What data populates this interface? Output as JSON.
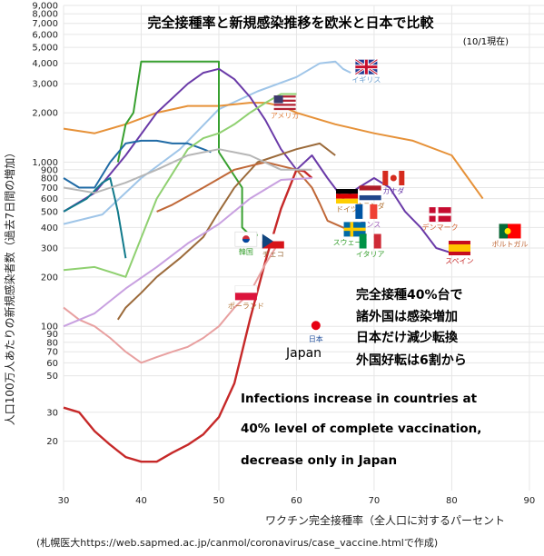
{
  "chart_data": {
    "type": "line",
    "title": "完全接種率と新規感染推移を欧米と日本で比較",
    "subtitle": "(10/1現在)",
    "xlabel": "ワクチン完全接種率（全人口に対するパーセント",
    "ylabel": "人口100万人あたりの新規感染者数（過去7日間の増加）",
    "xlim": [
      30,
      92
    ],
    "ylim": [
      10,
      9000
    ],
    "yscale": "log",
    "x_ticks": [
      "30",
      "40",
      "50",
      "60",
      "70",
      "80",
      "90"
    ],
    "y_ticks": [
      {
        "v": 20,
        "label": "20"
      },
      {
        "v": 30,
        "label": "30"
      },
      {
        "v": 50,
        "label": "50"
      },
      {
        "v": 60,
        "label": "60"
      },
      {
        "v": 70,
        "label": "70"
      },
      {
        "v": 80,
        "label": "80"
      },
      {
        "v": 90,
        "label": "90"
      },
      {
        "v": 100,
        "label": "100"
      },
      {
        "v": 200,
        "label": "200"
      },
      {
        "v": 300,
        "label": "300"
      },
      {
        "v": 400,
        "label": "400"
      },
      {
        "v": 500,
        "label": "500"
      },
      {
        "v": 600,
        "label": "600"
      },
      {
        "v": 700,
        "label": "700"
      },
      {
        "v": 800,
        "label": "800"
      },
      {
        "v": 900,
        "label": "900"
      },
      {
        "v": 1000,
        "label": "1,000"
      },
      {
        "v": 2000,
        "label": "2,000"
      },
      {
        "v": 3000,
        "label": "3,000"
      },
      {
        "v": 4000,
        "label": "4,000"
      },
      {
        "v": 5000,
        "label": "5,000"
      },
      {
        "v": 6000,
        "label": "6,000"
      },
      {
        "v": 7000,
        "label": "7,000"
      },
      {
        "v": 8000,
        "label": "8,000"
      },
      {
        "v": 9000,
        "label": "9,000"
      }
    ],
    "series": [
      {
        "name": "日本",
        "color": "#c62828",
        "x": [
          30,
          32,
          34,
          36,
          38,
          40,
          42,
          44,
          46,
          48,
          50,
          52,
          54,
          56,
          58,
          60,
          61,
          62
        ],
        "y": [
          32,
          30,
          23,
          19,
          16,
          15,
          15,
          17,
          19,
          22,
          28,
          45,
          110,
          250,
          520,
          900,
          880,
          800
        ]
      },
      {
        "name": "イギリス",
        "color": "#9fc5e8",
        "x": [
          30,
          35,
          40,
          45,
          50,
          55,
          60,
          63,
          65,
          66,
          67
        ],
        "y": [
          420,
          480,
          800,
          1200,
          2100,
          2700,
          3300,
          4000,
          4100,
          3700,
          3500
        ]
      },
      {
        "name": "アメリカ",
        "color": "#e69138",
        "x": [
          30,
          34,
          38,
          42,
          46,
          50,
          54,
          56,
          58,
          60,
          65,
          70,
          75,
          80,
          84
        ],
        "y": [
          1600,
          1500,
          1700,
          2000,
          2200,
          2200,
          2300,
          2300,
          2200,
          2000,
          1700,
          1500,
          1350,
          1100,
          600
        ]
      },
      {
        "name": "",
        "color": "#38a030",
        "x": [
          37,
          38,
          39,
          40,
          40,
          50,
          50,
          53,
          53,
          54,
          55
        ],
        "y": [
          1000,
          1700,
          2000,
          4100,
          4100,
          4100,
          1150,
          700,
          400,
          360,
          360
        ]
      },
      {
        "name": "",
        "color": "#6a3aa8",
        "x": [
          30,
          34,
          38,
          42,
          46,
          48,
          50,
          52,
          54,
          56,
          58,
          60,
          62,
          64,
          66,
          68,
          70,
          72,
          74,
          76,
          78,
          80
        ],
        "y": [
          500,
          650,
          1100,
          2000,
          3000,
          3500,
          3700,
          3200,
          2500,
          1800,
          1200,
          900,
          1100,
          800,
          600,
          700,
          800,
          700,
          500,
          400,
          300,
          280
        ]
      },
      {
        "name": "",
        "color": "#1f6aa5",
        "x": [
          30,
          32,
          34,
          36,
          38,
          40,
          42,
          44,
          46,
          48,
          49
        ],
        "y": [
          800,
          700,
          700,
          1000,
          1300,
          1350,
          1350,
          1300,
          1300,
          1200,
          1150
        ]
      },
      {
        "name": "",
        "color": "#117a8b",
        "x": [
          30,
          33,
          35,
          36,
          37,
          38
        ],
        "y": [
          500,
          600,
          750,
          800,
          500,
          260
        ]
      },
      {
        "name": "",
        "color": "#9b6a3a",
        "x": [
          37,
          38,
          40,
          42,
          45,
          48,
          50,
          52,
          55,
          60,
          63,
          65
        ],
        "y": [
          110,
          130,
          160,
          200,
          260,
          350,
          500,
          700,
          1000,
          1200,
          1300,
          1100
        ]
      },
      {
        "name": "",
        "color": "#c06838",
        "x": [
          42,
          44,
          48,
          52,
          56,
          60,
          62,
          63,
          64,
          66,
          70
        ],
        "y": [
          500,
          550,
          700,
          900,
          1000,
          900,
          700,
          560,
          440,
          400,
          350
        ]
      },
      {
        "name": "",
        "color": "#e8a0a0",
        "x": [
          30,
          32,
          34,
          36,
          38,
          40,
          42,
          44,
          46,
          48,
          50,
          52,
          54,
          56,
          58
        ],
        "y": [
          130,
          110,
          100,
          85,
          70,
          60,
          65,
          70,
          75,
          85,
          100,
          130,
          160,
          240,
          340
        ]
      },
      {
        "name": "",
        "color": "#8fd070",
        "x": [
          30,
          34,
          38,
          42,
          46,
          48,
          50,
          52,
          54,
          56,
          58,
          60
        ],
        "y": [
          220,
          230,
          200,
          600,
          1200,
          1400,
          1500,
          1700,
          2000,
          2300,
          2600,
          2600
        ]
      },
      {
        "name": "",
        "color": "#b6b6b6",
        "x": [
          30,
          34,
          38,
          42,
          46,
          50,
          54,
          58,
          62
        ],
        "y": [
          700,
          650,
          750,
          900,
          1100,
          1200,
          1100,
          900,
          900
        ]
      },
      {
        "name": "",
        "color": "#c8a0e0",
        "x": [
          30,
          34,
          38,
          42,
          46,
          50,
          54,
          58,
          62
        ],
        "y": [
          100,
          120,
          170,
          230,
          320,
          420,
          600,
          780,
          800
        ]
      }
    ],
    "flags": [
      {
        "label": "イギリス",
        "x": 69,
        "y": 3800,
        "kind": "uk"
      },
      {
        "label": "アメリカ",
        "x": 58.5,
        "y": 2300,
        "kind": "us"
      },
      {
        "label": "カナダ",
        "x": 72.5,
        "y": 800,
        "kind": "ca"
      },
      {
        "label": "ドイツ",
        "x": 66.5,
        "y": 620,
        "kind": "de"
      },
      {
        "label": "オランダ",
        "x": 69.5,
        "y": 650,
        "kind": "nl"
      },
      {
        "label": "フランス",
        "x": 69,
        "y": 500,
        "kind": "fr"
      },
      {
        "label": "スウェーデン",
        "x": 67.5,
        "y": 390,
        "kind": "se"
      },
      {
        "label": "イタリア",
        "x": 69.5,
        "y": 330,
        "kind": "it"
      },
      {
        "label": "デンマーク",
        "x": 78.5,
        "y": 480,
        "kind": "dk"
      },
      {
        "label": "スペイン",
        "x": 81,
        "y": 300,
        "kind": "es"
      },
      {
        "label": "ポルトガル",
        "x": 87.5,
        "y": 380,
        "kind": "pt"
      },
      {
        "label": "韓国",
        "x": 53.5,
        "y": 340,
        "kind": "kr"
      },
      {
        "label": "チェコ",
        "x": 57,
        "y": 330,
        "kind": "cz"
      },
      {
        "label": "ポーランド",
        "x": 53.5,
        "y": 160,
        "kind": "pl"
      },
      {
        "label": "日本",
        "x": 62.5,
        "y": 100,
        "kind": "jp"
      }
    ],
    "annotations": {
      "japan_label": "Japan",
      "jp_lines": [
        "完全接種40%台で",
        "諸外国は感染増加",
        "日本だけ減少転換",
        "外国好転は6割から"
      ],
      "en_lines": [
        "Infections increase in countries at",
        "40% level of complete vaccination,",
        "decrease only in Japan"
      ],
      "source": "(札幌医大https://web.sapmed.ac.jp/canmol/coronavirus/case_vaccine.htmlで作成)"
    }
  }
}
